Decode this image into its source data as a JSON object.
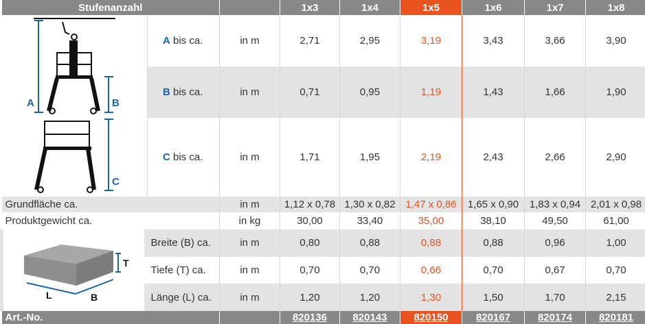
{
  "header": {
    "title": "Stufenanzahl",
    "columns": [
      "1x3",
      "1x4",
      "1x5",
      "1x6",
      "1x7",
      "1x8"
    ],
    "highlighted": "1x5"
  },
  "rows": [
    {
      "letter": "A",
      "label": " bis ca.",
      "unit": "in m",
      "values": [
        "2,71",
        "2,95",
        "3,19",
        "3,43",
        "3,66",
        "3,90"
      ]
    },
    {
      "letter": "B",
      "label": " bis ca.",
      "unit": "in m",
      "values": [
        "0,71",
        "0,95",
        "1,19",
        "1,43",
        "1,66",
        "1,90"
      ]
    },
    {
      "letter": "C",
      "label": " bis ca.",
      "unit": "in m",
      "values": [
        "1,71",
        "1,95",
        "2,19",
        "2,43",
        "2,66",
        "2,90"
      ]
    },
    {
      "label": "Grundfläche ca.",
      "unit": "in m",
      "values": [
        "1,12 x 0,78",
        "1,30 x 0,82",
        "1,47 x 0,86",
        "1,65 x 0,90",
        "1,83 x 0,94",
        "2,01 x 0,98"
      ]
    },
    {
      "label": "Produktgewicht ca.",
      "unit": "in kg",
      "values": [
        "30,00",
        "33,40",
        "35,00",
        "38,10",
        "49,50",
        "61,00"
      ]
    },
    {
      "label": "Breite (B) ca.",
      "unit": "in m",
      "values": [
        "0,80",
        "0,88",
        "0,88",
        "0,88",
        "0,96",
        "1,00"
      ]
    },
    {
      "label": "Tiefe (T) ca.",
      "unit": "in m",
      "values": [
        "0,70",
        "0,70",
        "0,66",
        "0,70",
        "0,67",
        "0,70"
      ]
    },
    {
      "label": "Länge (L) ca.",
      "unit": "in m",
      "values": [
        "1,20",
        "1,20",
        "1,30",
        "1,50",
        "1,70",
        "2,15"
      ]
    }
  ],
  "footer": {
    "label": "Art.-No.",
    "values": [
      "820136",
      "820143",
      "820150",
      "820167",
      "820174",
      "820181"
    ]
  },
  "diagram": {
    "a": "A",
    "b": "B",
    "c": "C",
    "l": "L",
    "bb": "B",
    "t": "T"
  },
  "colors": {
    "accent": "#e8531f",
    "header": "#888888",
    "blue": "#1a63b0"
  }
}
